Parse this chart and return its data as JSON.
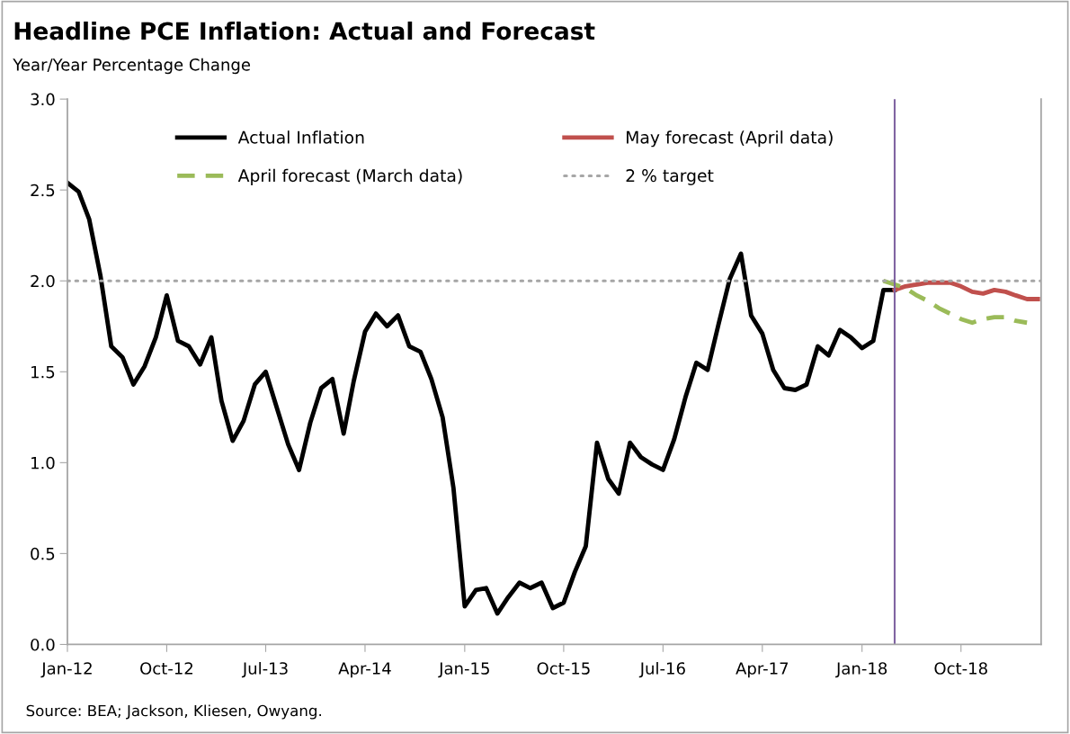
{
  "chart_data": {
    "type": "line",
    "title": "Headline PCE Inflation: Actual and Forecast",
    "subtitle": "Year/Year Percentage Change",
    "annotations": [
      "Source: BEA; Jackson, Kliesen, Owyang."
    ],
    "series": [
      {
        "name": "Actual Inflation",
        "color": "#000000",
        "line_style": "solid",
        "x": [
          "2012-01",
          "2012-02",
          "2012-03",
          "2012-04",
          "2012-05",
          "2012-06",
          "2012-07",
          "2012-08",
          "2012-09",
          "2012-10",
          "2012-11",
          "2012-12",
          "2013-01",
          "2013-02",
          "2013-03",
          "2013-04",
          "2013-05",
          "2013-06",
          "2013-07",
          "2013-08",
          "2013-09",
          "2013-10",
          "2013-11",
          "2013-12",
          "2014-01",
          "2014-02",
          "2014-03",
          "2014-04",
          "2014-05",
          "2014-06",
          "2014-07",
          "2014-08",
          "2014-09",
          "2014-10",
          "2014-11",
          "2014-12",
          "2015-01",
          "2015-02",
          "2015-03",
          "2015-04",
          "2015-05",
          "2015-06",
          "2015-07",
          "2015-08",
          "2015-09",
          "2015-10",
          "2015-11",
          "2015-12",
          "2016-01",
          "2016-02",
          "2016-03",
          "2016-04",
          "2016-05",
          "2016-06",
          "2016-07",
          "2016-08",
          "2016-09",
          "2016-10",
          "2016-11",
          "2016-12",
          "2017-01",
          "2017-02",
          "2017-03",
          "2017-04",
          "2017-05",
          "2017-06",
          "2017-07",
          "2017-08",
          "2017-09",
          "2017-10",
          "2017-11",
          "2017-12",
          "2018-01",
          "2018-02",
          "2018-03",
          "2018-04"
        ],
        "values": [
          2.54,
          2.49,
          2.34,
          2.03,
          1.64,
          1.58,
          1.43,
          1.53,
          1.69,
          1.92,
          1.67,
          1.64,
          1.54,
          1.69,
          1.34,
          1.12,
          1.23,
          1.43,
          1.5,
          1.3,
          1.1,
          0.96,
          1.22,
          1.41,
          1.46,
          1.16,
          1.45,
          1.72,
          1.82,
          1.75,
          1.81,
          1.64,
          1.61,
          1.46,
          1.25,
          0.86,
          0.21,
          0.3,
          0.31,
          0.17,
          0.26,
          0.34,
          0.31,
          0.34,
          0.2,
          0.23,
          0.4,
          0.54,
          1.11,
          0.91,
          0.83,
          1.11,
          1.03,
          0.99,
          0.96,
          1.13,
          1.36,
          1.55,
          1.51,
          1.76,
          2.01,
          2.15,
          1.81,
          1.71,
          1.51,
          1.41,
          1.4,
          1.43,
          1.64,
          1.59,
          1.73,
          1.69,
          1.63,
          1.67,
          1.95,
          1.95
        ]
      },
      {
        "name": "May forecast (April data)",
        "color": "#c0504d",
        "line_style": "solid",
        "x": [
          "2018-04",
          "2018-05",
          "2018-06",
          "2018-07",
          "2018-08",
          "2018-09",
          "2018-10",
          "2018-11",
          "2018-12",
          "2019-01",
          "2019-02",
          "2019-03",
          "2019-04",
          "2019-05"
        ],
        "values": [
          1.95,
          1.97,
          1.98,
          1.99,
          1.99,
          1.99,
          1.97,
          1.94,
          1.93,
          1.95,
          1.94,
          1.92,
          1.9,
          1.9
        ]
      },
      {
        "name": "April forecast (March data)",
        "color": "#9bbb59",
        "line_style": "dashed",
        "x": [
          "2018-03",
          "2018-04",
          "2018-05",
          "2018-06",
          "2018-07",
          "2018-08",
          "2018-09",
          "2018-10",
          "2018-11",
          "2018-12",
          "2019-01",
          "2019-02",
          "2019-03",
          "2019-04"
        ],
        "values": [
          2.0,
          1.98,
          1.96,
          1.92,
          1.89,
          1.85,
          1.82,
          1.79,
          1.77,
          1.79,
          1.8,
          1.8,
          1.78,
          1.77
        ]
      },
      {
        "name": "2 % target",
        "color": "#a6a6a6",
        "line_style": "dotted",
        "x": [
          "2012-01",
          "2019-05-10"
        ],
        "values": [
          2.0,
          2.0
        ]
      }
    ],
    "ref_lines": [
      {
        "axis": "x",
        "value": "2018-04",
        "color": "#8064a2",
        "line_style": "solid"
      }
    ],
    "xlim": [
      "2012-01",
      "2019-05-10"
    ],
    "xticks": [
      {
        "value": "2012-01",
        "label": "Jan-12"
      },
      {
        "value": "2012-10",
        "label": "Oct-12"
      },
      {
        "value": "2013-07",
        "label": "Jul-13"
      },
      {
        "value": "2014-04",
        "label": "Apr-14"
      },
      {
        "value": "2015-01",
        "label": "Jan-15"
      },
      {
        "value": "2015-10",
        "label": "Oct-15"
      },
      {
        "value": "2016-07",
        "label": "Jul-16"
      },
      {
        "value": "2017-04",
        "label": "Apr-17"
      },
      {
        "value": "2018-01",
        "label": "Jan-18"
      },
      {
        "value": "2018-10",
        "label": "Oct-18"
      }
    ],
    "ylim": [
      0,
      3
    ],
    "yticks": [
      {
        "value": 0,
        "label": "0.0"
      },
      {
        "value": 0.5,
        "label": "0.5"
      },
      {
        "value": 1,
        "label": "1.0"
      },
      {
        "value": 1.5,
        "label": "1.5"
      },
      {
        "value": 2,
        "label": "2.0"
      },
      {
        "value": 2.5,
        "label": "2.5"
      },
      {
        "value": 3,
        "label": "3.0"
      }
    ],
    "grid": false,
    "legend": "top",
    "marker": "none"
  }
}
